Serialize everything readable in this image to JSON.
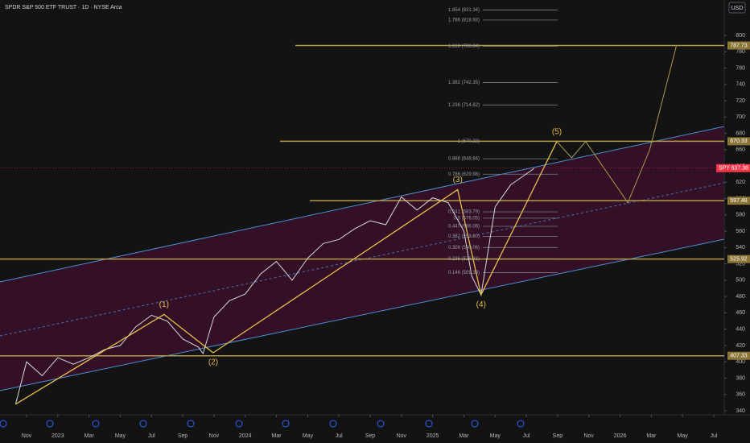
{
  "chart_data": {
    "type": "line",
    "title": "SPDR S&P 500 ETF TRUST · 1D · NYSE Arca",
    "currency": "USD",
    "xlim": [
      -1.7,
      44.67
    ],
    "xticks": [
      {
        "value": 0,
        "label": "Nov"
      },
      {
        "value": 2,
        "label": "2023"
      },
      {
        "value": 4,
        "label": "Mar"
      },
      {
        "value": 6,
        "label": "May"
      },
      {
        "value": 8,
        "label": "Jul"
      },
      {
        "value": 10,
        "label": "Sep"
      },
      {
        "value": 12,
        "label": "Nov"
      },
      {
        "value": 14,
        "label": "2024"
      },
      {
        "value": 16,
        "label": "Mar"
      },
      {
        "value": 18,
        "label": "May"
      },
      {
        "value": 20,
        "label": "Jul"
      },
      {
        "value": 22,
        "label": "Sep"
      },
      {
        "value": 24,
        "label": "Nov"
      },
      {
        "value": 26,
        "label": "2025"
      },
      {
        "value": 28,
        "label": "Mar"
      },
      {
        "value": 30,
        "label": "May"
      },
      {
        "value": 32,
        "label": "Jul"
      },
      {
        "value": 34,
        "label": "Sep"
      },
      {
        "value": 36,
        "label": "Nov"
      },
      {
        "value": 38,
        "label": "2026"
      },
      {
        "value": 40,
        "label": "Mar"
      },
      {
        "value": 42,
        "label": "May"
      },
      {
        "value": 44,
        "label": "Jul"
      }
    ],
    "ylim": [
      335,
      843.5
    ],
    "yticks": [
      340,
      360,
      380,
      400,
      420,
      440,
      460,
      480,
      500,
      520,
      540,
      560,
      580,
      600,
      620,
      640,
      660,
      680,
      700,
      720,
      740,
      760,
      780,
      800
    ],
    "series": [
      {
        "name": "SPY",
        "color": "#d8d8d8",
        "x": [
          -0.7,
          0,
          1,
          2,
          3,
          4,
          5,
          6,
          7,
          8,
          9,
          10,
          11,
          11.3,
          12,
          13,
          14,
          15,
          16,
          17,
          18,
          19,
          20,
          21,
          22,
          23,
          24,
          25,
          26,
          27,
          28,
          28.5,
          29.1,
          30,
          31,
          32.5
        ],
        "values": [
          348,
          400,
          383,
          405,
          397,
          405,
          415,
          420,
          443,
          457,
          450,
          428,
          418,
          410,
          455,
          475,
          483,
          508,
          523,
          500,
          527,
          545,
          550,
          563,
          573,
          568,
          602,
          586,
          601,
          595,
          560,
          505,
          482,
          590,
          617,
          637
        ]
      }
    ],
    "wave": {
      "color": "#e8be4a",
      "x": [
        -0.7,
        8.8,
        11.95,
        27.6,
        29.1,
        33.95
      ],
      "values": [
        348,
        458,
        411,
        611,
        482,
        670
      ],
      "labels": [
        null,
        "(1)",
        "(2)",
        "(3)",
        "(4)",
        "(5)"
      ]
    },
    "projection": {
      "color": "#a89a50",
      "x": [
        33.95,
        34.9,
        35.8,
        38.5,
        39.9,
        41.6
      ],
      "values": [
        670,
        650,
        670,
        595,
        660,
        787
      ]
    },
    "levels": [
      787.73,
      670.33,
      597.48,
      525.92,
      407.33
    ],
    "level_color": "#b59a4a",
    "last_price": 637.38,
    "last_price_color": "#f23645",
    "fibs": [
      {
        "value": 831.34,
        "label": "1.854 (831.34)"
      },
      {
        "value": 818.93,
        "label": "1.786 (818.93)"
      },
      {
        "value": 786.84,
        "label": "1.618 (786.84)"
      },
      {
        "value": 742.35,
        "label": "1.382 (742.35)"
      },
      {
        "value": 714.82,
        "label": "1.236 (714.82)"
      },
      {
        "value": 670.33,
        "label": "1 (670.33)"
      },
      {
        "value": 648.84,
        "label": "0.886 (648.84)"
      },
      {
        "value": 629.98,
        "label": "0.786 (629.98)"
      },
      {
        "value": 583.79,
        "label": "0.541 (583.79)"
      },
      {
        "value": 576.05,
        "label": "0.5 (576.05)"
      },
      {
        "value": 566.06,
        "label": "0.447 (566.06)"
      },
      {
        "value": 553.8,
        "label": "0.382 (553.80)"
      },
      {
        "value": 540.06,
        "label": "0.309 (540.06)"
      },
      {
        "value": 526.31,
        "label": "0.236 (526.31)"
      },
      {
        "value": 509.33,
        "label": "0.146 (509.33)"
      }
    ]
  }
}
